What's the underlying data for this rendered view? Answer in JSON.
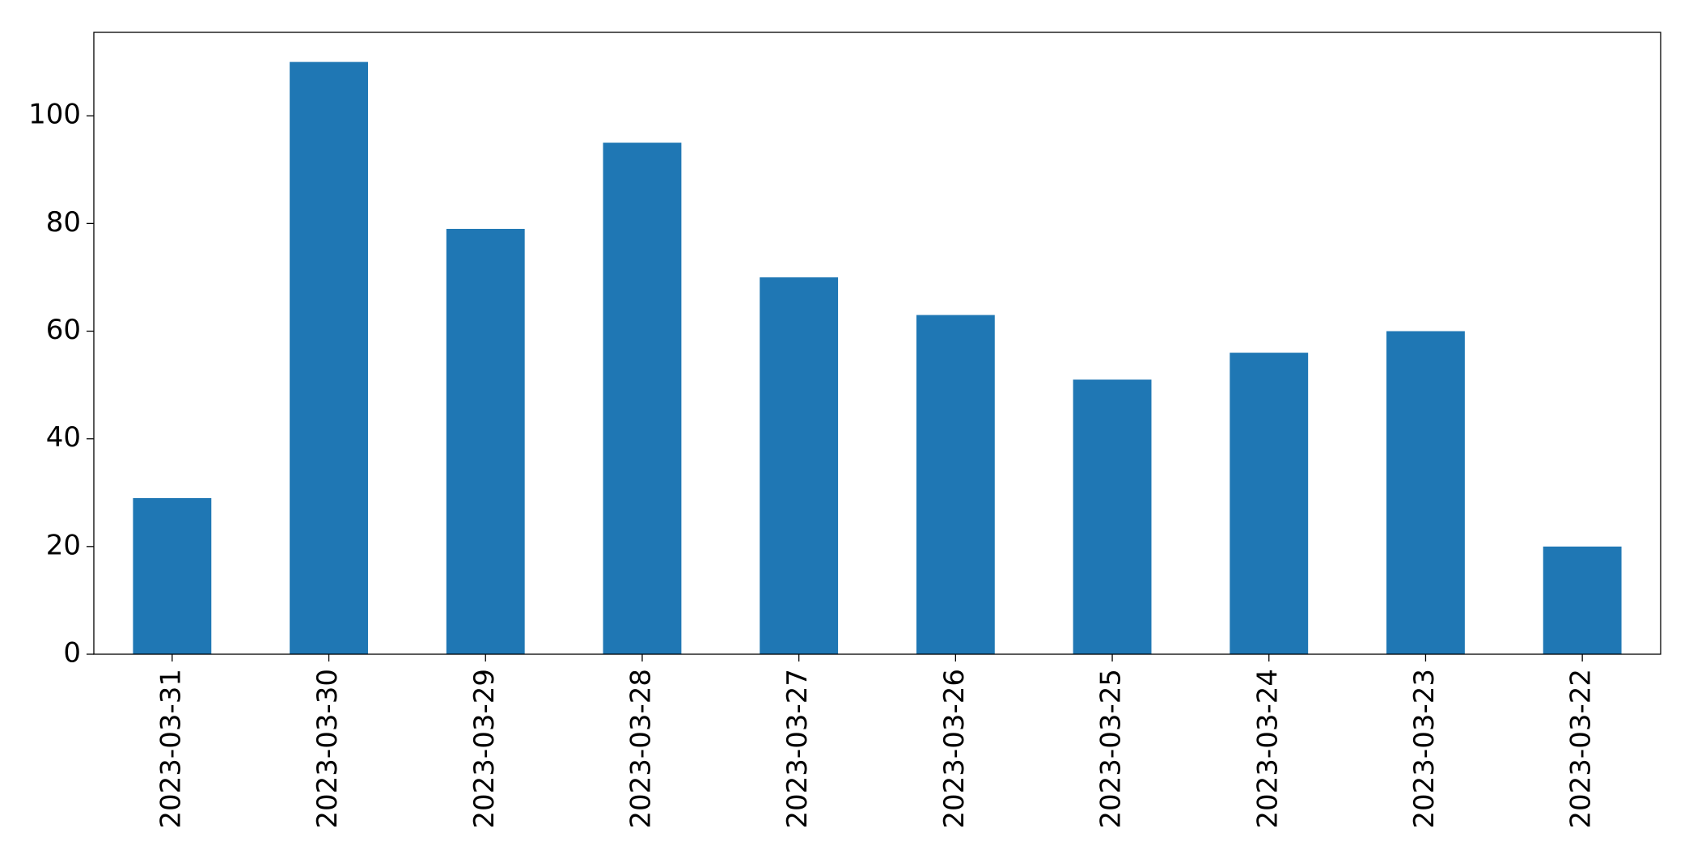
{
  "chart_data": {
    "type": "bar",
    "categories": [
      "2023-03-31",
      "2023-03-30",
      "2023-03-29",
      "2023-03-28",
      "2023-03-27",
      "2023-03-26",
      "2023-03-25",
      "2023-03-24",
      "2023-03-23",
      "2023-03-22"
    ],
    "values": [
      29,
      110,
      79,
      95,
      70,
      63,
      51,
      56,
      60,
      20
    ],
    "color": "#1f77b4",
    "ylim": [
      0,
      115.5
    ],
    "yticks": [
      0,
      20,
      40,
      60,
      80,
      100
    ],
    "grid": false
  }
}
